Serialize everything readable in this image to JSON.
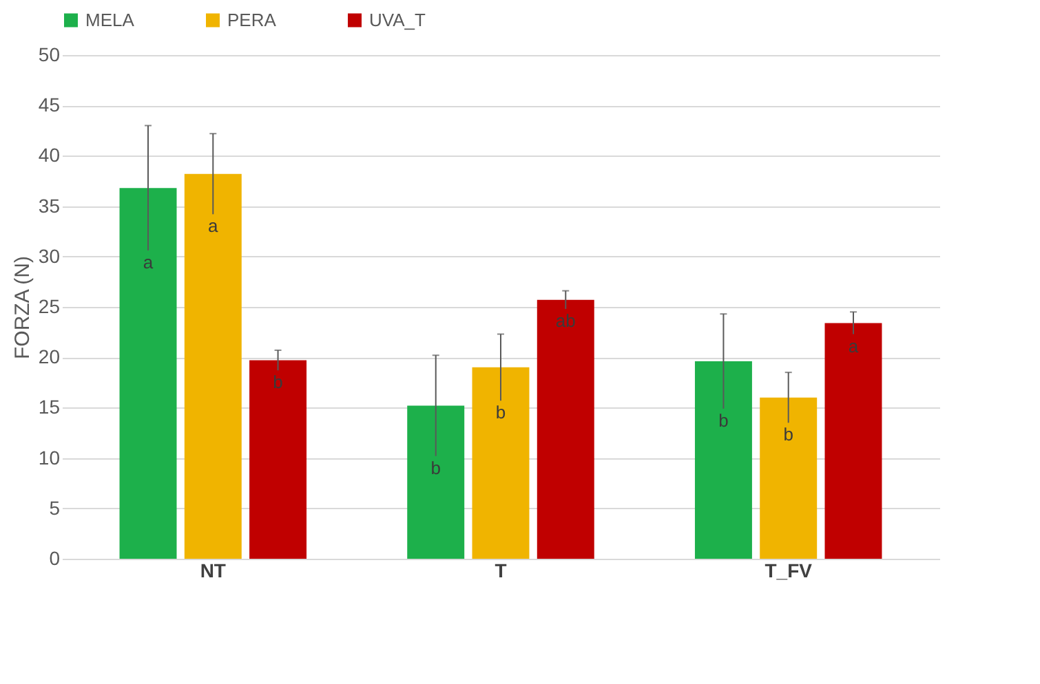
{
  "chart_data": {
    "type": "bar",
    "ylabel": "FORZA (N)",
    "categories": [
      "NT",
      "T",
      "T_FV"
    ],
    "series": [
      {
        "name": "MELA",
        "color": "#1db04b",
        "values": [
          36.8,
          15.2,
          19.6
        ],
        "errors": [
          6.2,
          5.0,
          4.7
        ],
        "value_labels": [
          "a",
          "b",
          "b"
        ]
      },
      {
        "name": "PERA",
        "color": "#f0b400",
        "values": [
          38.2,
          19.0,
          16.0
        ],
        "errors": [
          4.0,
          3.3,
          2.5
        ],
        "value_labels": [
          "a",
          "b",
          "b"
        ]
      },
      {
        "name": "UVA_T",
        "color": "#c00000",
        "values": [
          19.7,
          25.7,
          23.4
        ],
        "errors": [
          1.0,
          0.9,
          1.1
        ],
        "value_labels": [
          "b",
          "ab",
          "a"
        ]
      }
    ],
    "ylim": [
      0,
      50
    ],
    "yticks": [
      0,
      5,
      10,
      15,
      20,
      25,
      30,
      35,
      40,
      45,
      50
    ],
    "grid": "y",
    "legend": "top"
  }
}
